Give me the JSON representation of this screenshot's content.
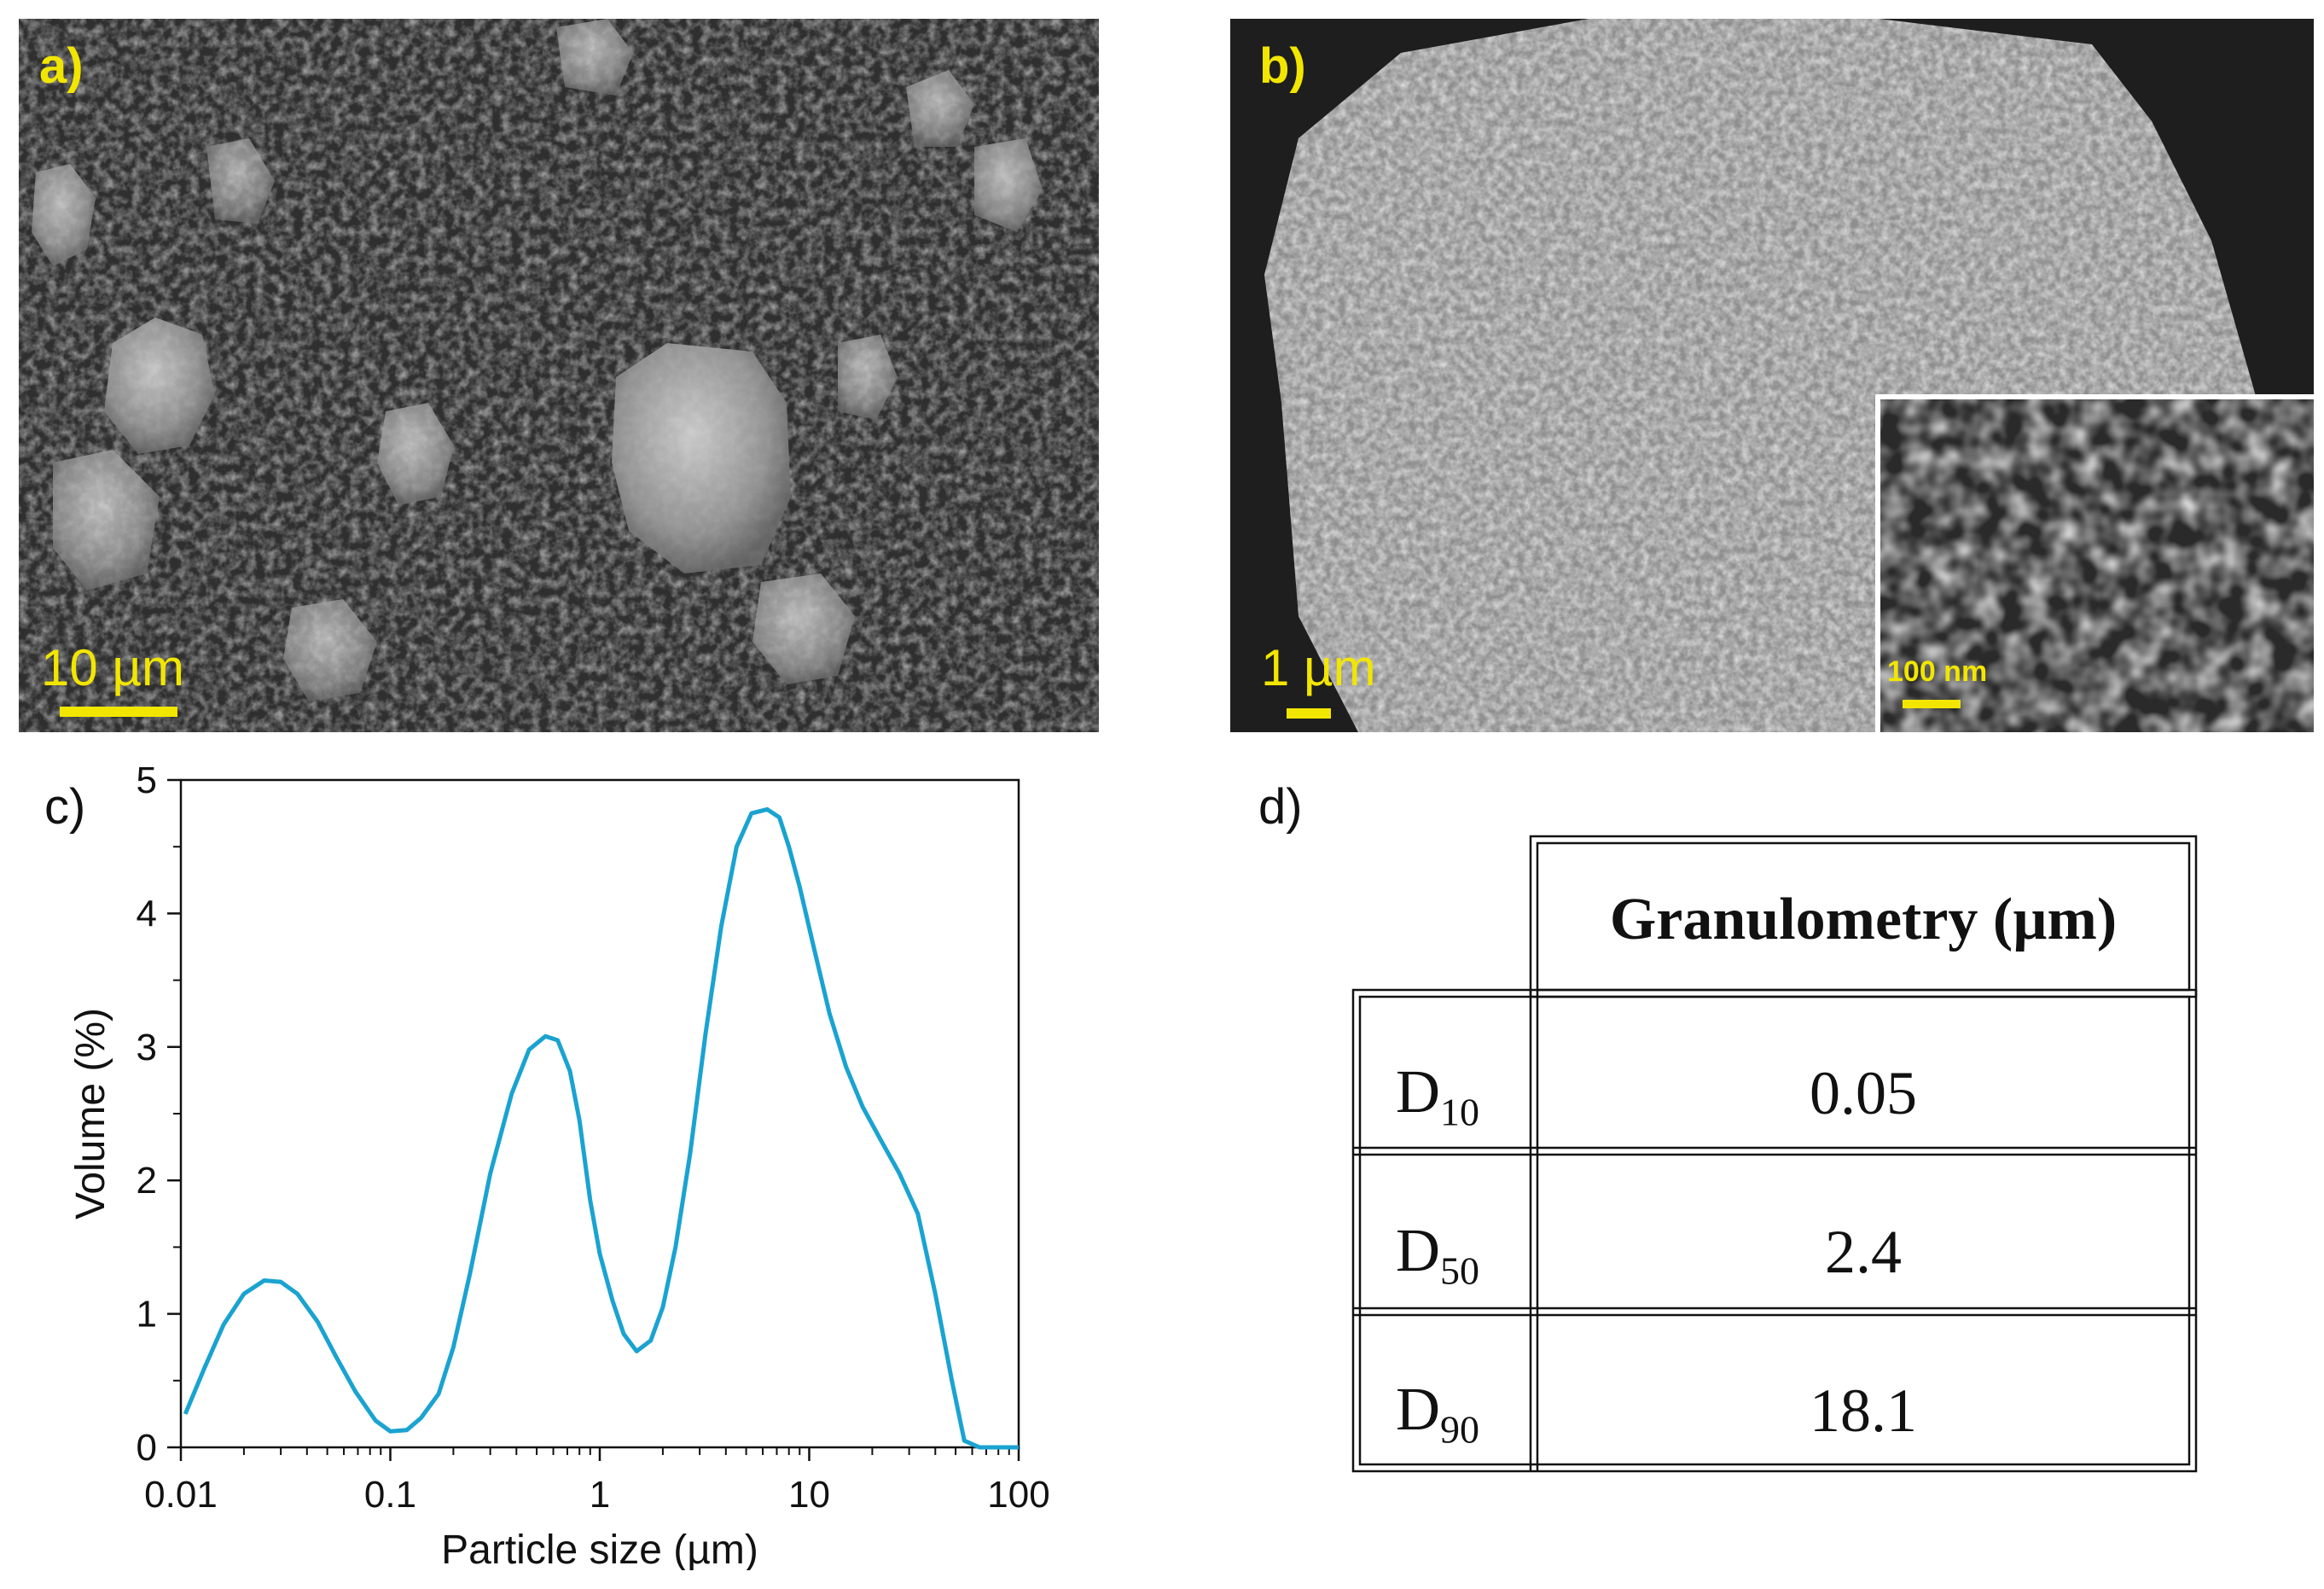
{
  "panels": {
    "a": {
      "label": "a)",
      "scale_label": "10 µm"
    },
    "b": {
      "label": "b)",
      "scale_label": "1 µm",
      "inset_scale_label": "100 nm"
    },
    "c": {
      "label": "c)"
    },
    "d": {
      "label": "d)"
    }
  },
  "colors": {
    "annotation_yellow": "#f2e600",
    "curve": "#1aa3d1",
    "sem_background": "#3b3b3b"
  },
  "chart_data": {
    "type": "line",
    "xscale": "log",
    "xlabel": "Particle size (µm)",
    "ylabel": "Volume (%)",
    "xlim": [
      0.01,
      100
    ],
    "ylim": [
      0,
      5
    ],
    "xticks": [
      0.01,
      0.1,
      1,
      10,
      100
    ],
    "xtick_labels": [
      "0.01",
      "0.1",
      "1",
      "10",
      "100"
    ],
    "yticks": [
      0,
      1,
      2,
      3,
      4,
      5
    ],
    "ytick_labels": [
      "0",
      "1",
      "2",
      "3",
      "4",
      "5"
    ],
    "grid": false,
    "series": [
      {
        "x": [
          0.0105,
          0.013,
          0.016,
          0.02,
          0.025,
          0.03,
          0.036,
          0.045,
          0.055,
          0.068,
          0.085,
          0.1,
          0.12,
          0.14,
          0.17,
          0.2,
          0.24,
          0.3,
          0.38,
          0.46,
          0.55,
          0.63,
          0.72,
          0.8,
          0.9,
          1.0,
          1.15,
          1.3,
          1.5,
          1.75,
          2.0,
          2.3,
          2.7,
          3.2,
          3.8,
          4.5,
          5.3,
          6.3,
          7.2,
          8.0,
          9.0,
          10.5,
          12.5,
          15.0,
          18.0,
          22.0,
          27.0,
          33.0,
          40.0,
          48.0,
          55.0,
          65.0,
          80.0,
          100.0
        ],
        "y": [
          0.25,
          0.6,
          0.92,
          1.15,
          1.25,
          1.24,
          1.15,
          0.94,
          0.68,
          0.42,
          0.2,
          0.12,
          0.13,
          0.22,
          0.4,
          0.75,
          1.3,
          2.05,
          2.65,
          2.98,
          3.08,
          3.05,
          2.82,
          2.45,
          1.85,
          1.45,
          1.1,
          0.85,
          0.72,
          0.8,
          1.05,
          1.5,
          2.2,
          3.1,
          3.9,
          4.5,
          4.75,
          4.78,
          4.72,
          4.5,
          4.2,
          3.75,
          3.25,
          2.85,
          2.55,
          2.3,
          2.05,
          1.75,
          1.15,
          0.5,
          0.05,
          0.0,
          0.0,
          0.0
        ]
      }
    ]
  },
  "table": {
    "header": "Granulometry (µm)",
    "rows": [
      {
        "label_main": "D",
        "label_sub": "10",
        "value": "0.05"
      },
      {
        "label_main": "D",
        "label_sub": "50",
        "value": "2.4"
      },
      {
        "label_main": "D",
        "label_sub": "90",
        "value": "18.1"
      }
    ]
  }
}
